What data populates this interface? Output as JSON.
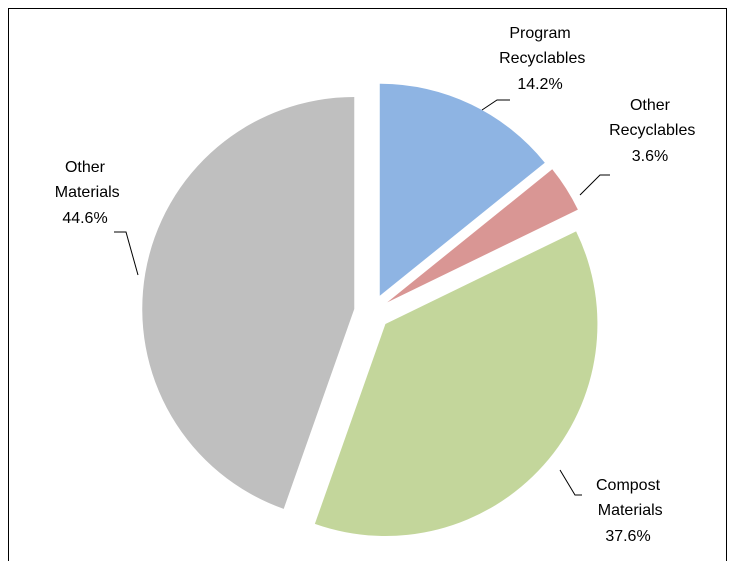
{
  "chart_data": {
    "type": "pie",
    "categories": [
      "Program Recyclables",
      "Other Recyclables",
      "Compost Materials",
      "Other Materials"
    ],
    "values": [
      14.2,
      3.6,
      37.6,
      44.6
    ],
    "value_labels": [
      "14.2%",
      "3.6%",
      "37.6%",
      "44.6%"
    ],
    "colors": [
      "#8eb4e3",
      "#d99694",
      "#c3d69b",
      "#bfbfbf"
    ]
  }
}
